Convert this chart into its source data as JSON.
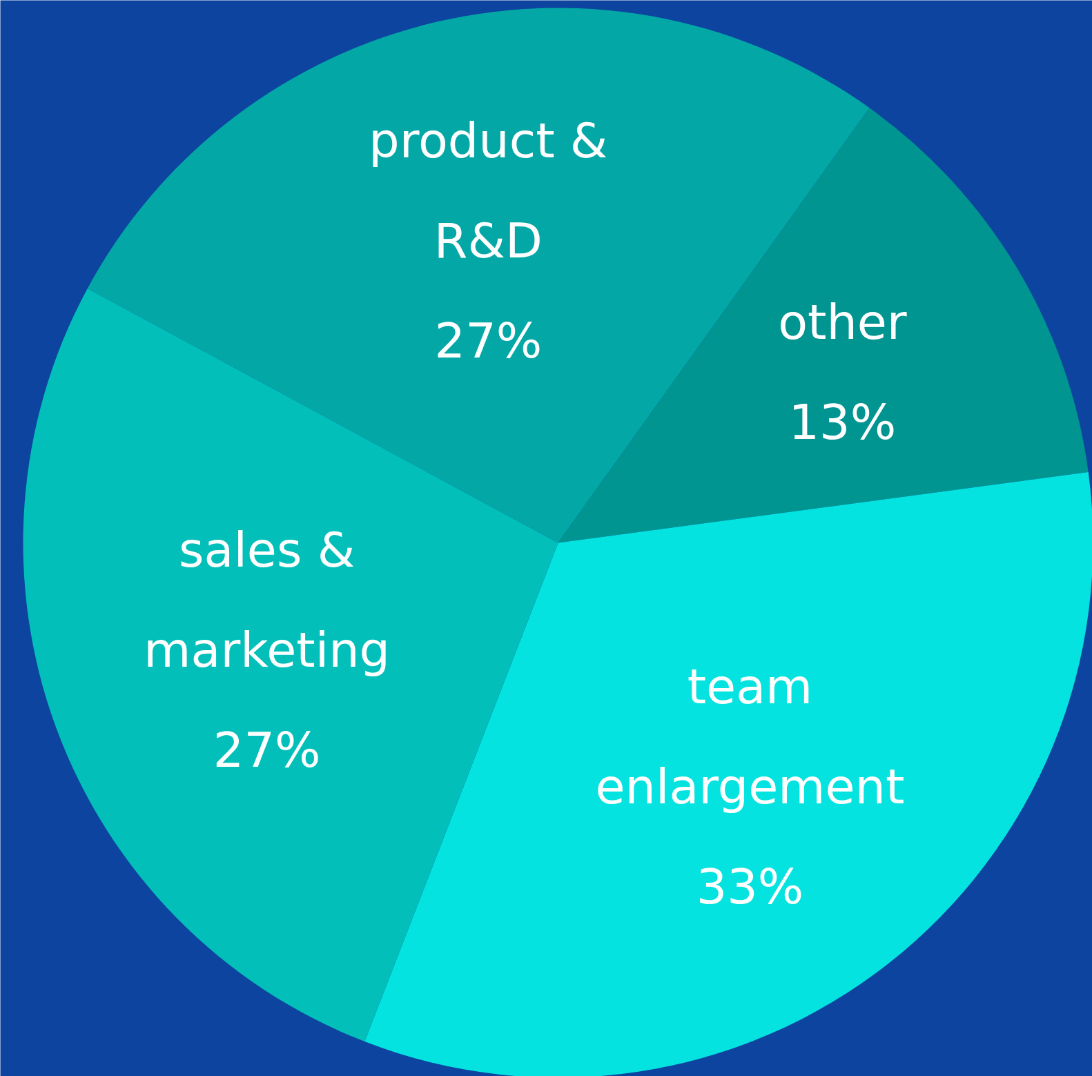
{
  "chart_data": {
    "type": "pie",
    "categories": [
      "product & R&D",
      "other",
      "team enlargement",
      "sales & marketing"
    ],
    "values": [
      27,
      13,
      33,
      27
    ],
    "value_labels": [
      "27%",
      "13%",
      "33%",
      "27%"
    ],
    "colors": [
      "#03a8a6",
      "#009590",
      "#04e3df",
      "#03bfba"
    ]
  }
}
